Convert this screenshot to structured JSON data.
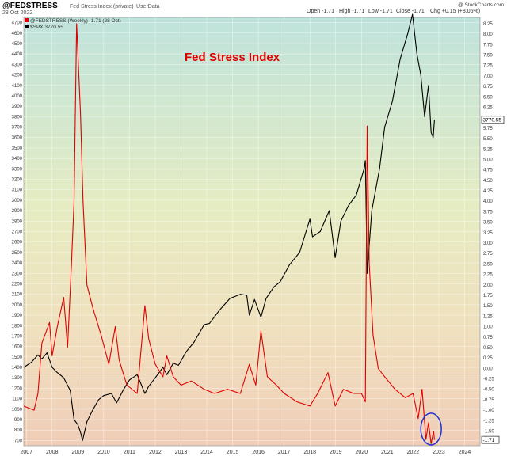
{
  "header": {
    "symbol": "@FEDSTRESS",
    "description": "Fed Stress Index (private)",
    "source": "UserData",
    "date": "28 Oct 2022",
    "open": "Open -1.71",
    "high": "High -1.71",
    "low": "Low -1.71",
    "close": "Close -1.71",
    "change": "Chg +0.15 (+8.06%)",
    "credit": "@ StockCharts.com"
  },
  "legend": {
    "fedstress": "@FEDSTRESS (Weekly) -1.71 (28 Oct)",
    "spx": "$SPX 3770.55"
  },
  "annotation": "Fed Stress Index",
  "last_values": {
    "spx": "3770.55",
    "fedstress": "-1.71"
  },
  "chart_data": {
    "type": "line",
    "title": "",
    "xlabel": "",
    "x_ticks": [
      "2007",
      "2008",
      "2009",
      "2010",
      "2011",
      "2012",
      "2013",
      "2014",
      "2015",
      "2016",
      "2017",
      "2018",
      "2019",
      "2020",
      "2021",
      "2022",
      "2023",
      "2024"
    ],
    "x_range": [
      2006.9,
      2024.6
    ],
    "left_axis": {
      "series": "$SPX",
      "ylim": [
        650,
        4750
      ],
      "ticks": [
        700,
        800,
        900,
        1000,
        1100,
        1200,
        1300,
        1400,
        1500,
        1600,
        1700,
        1800,
        1900,
        2000,
        2100,
        2200,
        2300,
        2400,
        2500,
        2600,
        2700,
        2800,
        2900,
        3000,
        3100,
        3200,
        3300,
        3400,
        3500,
        3600,
        3700,
        3800,
        3900,
        4000,
        4100,
        4200,
        4300,
        4400,
        4500,
        4600,
        4700
      ]
    },
    "right_axis": {
      "series": "@FEDSTRESS",
      "ylim": [
        -1.85,
        8.4
      ],
      "ticks": [
        "-1.75",
        "-1.50",
        "-1.25",
        "-1.00",
        "-0.75",
        "-0.50",
        "-0.25",
        "0.00",
        "0.25",
        "0.50",
        "0.75",
        "1.00",
        "1.25",
        "1.50",
        "1.75",
        "2.00",
        "2.25",
        "2.50",
        "2.75",
        "3.00",
        "3.25",
        "3.50",
        "3.75",
        "4.00",
        "4.25",
        "4.50",
        "4.75",
        "5.00",
        "5.25",
        "5.50",
        "5.75",
        "6.00",
        "6.25",
        "6.50",
        "6.75",
        "7.00",
        "7.25",
        "7.50",
        "7.75",
        "8.00",
        "8.25"
      ]
    },
    "grid": true,
    "series": [
      {
        "name": "$SPX",
        "axis": "left",
        "color": "#000000",
        "x": [
          2006.9,
          2007.2,
          2007.45,
          2007.6,
          2007.8,
          2008.0,
          2008.2,
          2008.45,
          2008.7,
          2008.85,
          2009.0,
          2009.1,
          2009.18,
          2009.35,
          2009.55,
          2009.8,
          2010.0,
          2010.3,
          2010.5,
          2010.75,
          2011.0,
          2011.3,
          2011.6,
          2011.75,
          2012.0,
          2012.3,
          2012.45,
          2012.7,
          2012.9,
          2013.2,
          2013.5,
          2013.9,
          2014.1,
          2014.5,
          2014.9,
          2015.3,
          2015.55,
          2015.65,
          2015.85,
          2016.1,
          2016.3,
          2016.6,
          2016.85,
          2017.2,
          2017.6,
          2018.0,
          2018.1,
          2018.4,
          2018.75,
          2018.98,
          2019.2,
          2019.5,
          2019.8,
          2020.1,
          2020.15,
          2020.22,
          2020.4,
          2020.7,
          2020.9,
          2021.2,
          2021.5,
          2021.8,
          2021.98,
          2022.15,
          2022.3,
          2022.45,
          2022.6,
          2022.7,
          2022.78,
          2022.83
        ],
        "y": [
          1400,
          1450,
          1520,
          1480,
          1540,
          1400,
          1350,
          1300,
          1180,
          900,
          850,
          780,
          700,
          880,
          980,
          1090,
          1130,
          1150,
          1060,
          1180,
          1280,
          1330,
          1150,
          1220,
          1300,
          1400,
          1330,
          1440,
          1420,
          1550,
          1640,
          1810,
          1820,
          1950,
          2060,
          2100,
          2090,
          1900,
          2050,
          1880,
          2060,
          2170,
          2220,
          2380,
          2500,
          2820,
          2650,
          2700,
          2900,
          2450,
          2800,
          2950,
          3050,
          3300,
          3380,
          2300,
          2900,
          3300,
          3700,
          3950,
          4350,
          4600,
          4780,
          4400,
          4200,
          3800,
          4100,
          3650,
          3600,
          3770
        ]
      },
      {
        "name": "@FEDSTRESS",
        "axis": "right",
        "color": "#e00000",
        "x": [
          2006.9,
          2007.3,
          2007.45,
          2007.6,
          2007.9,
          2008.0,
          2008.2,
          2008.45,
          2008.6,
          2008.75,
          2008.85,
          2008.95,
          2009.1,
          2009.2,
          2009.35,
          2009.6,
          2009.9,
          2010.2,
          2010.45,
          2010.6,
          2010.9,
          2011.3,
          2011.6,
          2011.75,
          2012.0,
          2012.3,
          2012.45,
          2012.7,
          2013.0,
          2013.4,
          2013.9,
          2014.3,
          2014.8,
          2015.3,
          2015.65,
          2015.9,
          2016.1,
          2016.35,
          2016.7,
          2017.0,
          2017.5,
          2018.0,
          2018.3,
          2018.7,
          2018.98,
          2019.3,
          2019.7,
          2020.0,
          2020.15,
          2020.22,
          2020.3,
          2020.45,
          2020.65,
          2020.9,
          2021.3,
          2021.7,
          2022.0,
          2022.2,
          2022.35,
          2022.5,
          2022.6,
          2022.7,
          2022.8,
          2022.83
        ],
        "y": [
          -0.9,
          -1.0,
          -0.6,
          0.6,
          1.1,
          0.3,
          1.0,
          1.7,
          0.5,
          2.5,
          4.0,
          8.25,
          6.1,
          4.0,
          2.0,
          1.4,
          0.8,
          0.1,
          1.0,
          0.2,
          -0.4,
          -0.6,
          1.5,
          0.7,
          0.1,
          -0.2,
          0.3,
          -0.2,
          -0.4,
          -0.3,
          -0.5,
          -0.6,
          -0.5,
          -0.6,
          0.1,
          -0.4,
          0.9,
          -0.2,
          -0.4,
          -0.6,
          -0.8,
          -0.9,
          -0.6,
          -0.1,
          -0.9,
          -0.5,
          -0.6,
          -0.6,
          -0.8,
          5.8,
          2.5,
          0.8,
          0.0,
          -0.2,
          -0.5,
          -0.7,
          -0.6,
          -1.2,
          -0.5,
          -1.7,
          -1.3,
          -1.8,
          -1.5,
          -1.71
        ]
      }
    ]
  }
}
